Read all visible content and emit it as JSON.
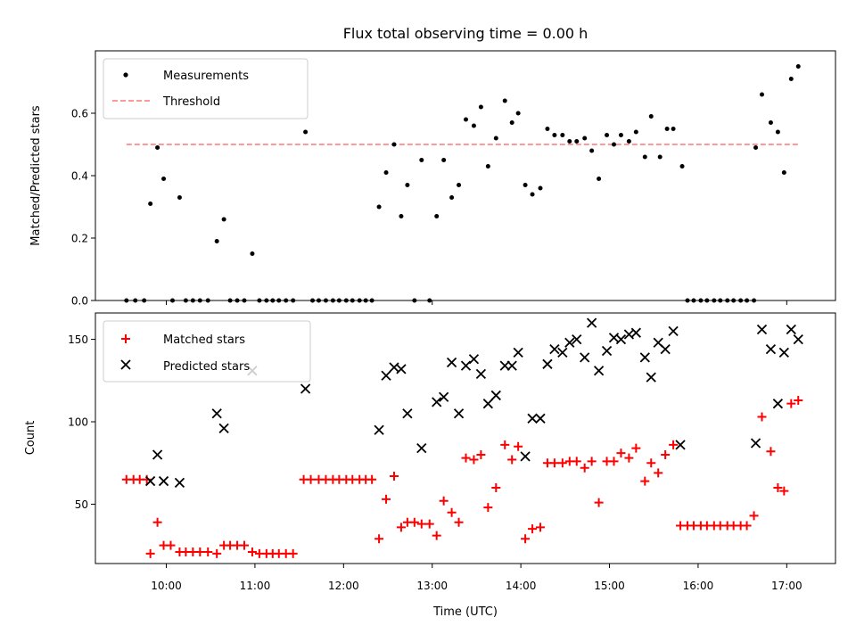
{
  "figure_title": "Flux total observing time = 0.00 h",
  "chart_data": [
    {
      "type": "scatter",
      "ylabel": "Matched/Predicted stars",
      "xlabel": "",
      "xlim": [
        9.2,
        17.55
      ],
      "ylim": [
        0,
        0.8
      ],
      "yticks": [
        0.0,
        0.2,
        0.4,
        0.6
      ],
      "ytick_labels": [
        "0.0",
        "0.2",
        "0.4",
        "0.6"
      ],
      "xticks": [
        10,
        13,
        17
      ],
      "grid": false,
      "legend_position": "upper-left",
      "threshold": {
        "name": "Threshold",
        "value": 0.5,
        "x_range": [
          9.55,
          17.15
        ],
        "color": "#ff7777",
        "style": "dashed"
      },
      "series": [
        {
          "name": "Measurements",
          "marker": "dot",
          "color": "#000000",
          "points": [
            [
              9.55,
              0
            ],
            [
              9.65,
              0
            ],
            [
              9.75,
              0
            ],
            [
              9.82,
              0.31
            ],
            [
              9.9,
              0.49
            ],
            [
              9.97,
              0.39
            ],
            [
              10.07,
              0
            ],
            [
              10.15,
              0.33
            ],
            [
              10.22,
              0
            ],
            [
              10.3,
              0
            ],
            [
              10.38,
              0
            ],
            [
              10.47,
              0
            ],
            [
              10.57,
              0.19
            ],
            [
              10.65,
              0.26
            ],
            [
              10.72,
              0
            ],
            [
              10.8,
              0
            ],
            [
              10.88,
              0
            ],
            [
              10.97,
              0.15
            ],
            [
              11.05,
              0
            ],
            [
              11.13,
              0
            ],
            [
              11.2,
              0
            ],
            [
              11.27,
              0
            ],
            [
              11.35,
              0
            ],
            [
              11.43,
              0
            ],
            [
              11.57,
              0.54
            ],
            [
              11.65,
              0
            ],
            [
              11.72,
              0
            ],
            [
              11.8,
              0
            ],
            [
              11.88,
              0
            ],
            [
              11.95,
              0
            ],
            [
              12.03,
              0
            ],
            [
              12.1,
              0
            ],
            [
              12.18,
              0
            ],
            [
              12.25,
              0
            ],
            [
              12.32,
              0
            ],
            [
              12.4,
              0.3
            ],
            [
              12.48,
              0.41
            ],
            [
              12.57,
              0.5
            ],
            [
              12.65,
              0.27
            ],
            [
              12.72,
              0.37
            ],
            [
              12.8,
              0
            ],
            [
              12.88,
              0.45
            ],
            [
              12.97,
              0
            ],
            [
              13.05,
              0.27
            ],
            [
              13.13,
              0.45
            ],
            [
              13.22,
              0.33
            ],
            [
              13.3,
              0.37
            ],
            [
              13.38,
              0.58
            ],
            [
              13.47,
              0.56
            ],
            [
              13.55,
              0.62
            ],
            [
              13.63,
              0.43
            ],
            [
              13.72,
              0.52
            ],
            [
              13.82,
              0.64
            ],
            [
              13.9,
              0.57
            ],
            [
              13.97,
              0.6
            ],
            [
              14.05,
              0.37
            ],
            [
              14.13,
              0.34
            ],
            [
              14.22,
              0.36
            ],
            [
              14.3,
              0.55
            ],
            [
              14.38,
              0.53
            ],
            [
              14.47,
              0.53
            ],
            [
              14.55,
              0.51
            ],
            [
              14.63,
              0.51
            ],
            [
              14.72,
              0.52
            ],
            [
              14.8,
              0.48
            ],
            [
              14.88,
              0.39
            ],
            [
              14.97,
              0.53
            ],
            [
              15.05,
              0.5
            ],
            [
              15.13,
              0.53
            ],
            [
              15.22,
              0.51
            ],
            [
              15.3,
              0.54
            ],
            [
              15.4,
              0.46
            ],
            [
              15.47,
              0.59
            ],
            [
              15.57,
              0.46
            ],
            [
              15.65,
              0.55
            ],
            [
              15.72,
              0.55
            ],
            [
              15.82,
              0.43
            ],
            [
              15.88,
              0
            ],
            [
              15.95,
              0
            ],
            [
              16.03,
              0
            ],
            [
              16.1,
              0
            ],
            [
              16.18,
              0
            ],
            [
              16.25,
              0
            ],
            [
              16.33,
              0
            ],
            [
              16.4,
              0
            ],
            [
              16.48,
              0
            ],
            [
              16.55,
              0
            ],
            [
              16.63,
              0
            ],
            [
              16.65,
              0.49
            ],
            [
              16.72,
              0.66
            ],
            [
              16.82,
              0.57
            ],
            [
              16.9,
              0.54
            ],
            [
              16.97,
              0.41
            ],
            [
              17.05,
              0.71
            ],
            [
              17.13,
              0.75
            ]
          ]
        }
      ]
    },
    {
      "type": "scatter",
      "ylabel": "Count",
      "xlabel": "Time (UTC)",
      "xlim": [
        9.2,
        17.55
      ],
      "ylim": [
        14,
        166
      ],
      "yticks": [
        50,
        100,
        150
      ],
      "ytick_labels": [
        "50",
        "100",
        "150"
      ],
      "xticks": [
        10,
        11,
        12,
        13,
        14,
        15,
        16,
        17
      ],
      "xtick_labels": [
        "10:00",
        "11:00",
        "12:00",
        "13:00",
        "14:00",
        "15:00",
        "16:00",
        "17:00"
      ],
      "grid": false,
      "legend_position": "upper-left",
      "series": [
        {
          "name": "Matched stars",
          "marker": "plus",
          "color": "#ff0000",
          "points": [
            [
              9.55,
              65
            ],
            [
              9.63,
              65
            ],
            [
              9.7,
              65
            ],
            [
              9.78,
              65
            ],
            [
              9.82,
              20
            ],
            [
              9.9,
              39
            ],
            [
              9.97,
              25
            ],
            [
              10.05,
              25
            ],
            [
              10.15,
              21
            ],
            [
              10.22,
              21
            ],
            [
              10.3,
              21
            ],
            [
              10.38,
              21
            ],
            [
              10.47,
              21
            ],
            [
              10.57,
              20
            ],
            [
              10.65,
              25
            ],
            [
              10.72,
              25
            ],
            [
              10.8,
              25
            ],
            [
              10.88,
              25
            ],
            [
              10.97,
              21
            ],
            [
              11.05,
              20
            ],
            [
              11.13,
              20
            ],
            [
              11.2,
              20
            ],
            [
              11.27,
              20
            ],
            [
              11.35,
              20
            ],
            [
              11.43,
              20
            ],
            [
              11.55,
              65
            ],
            [
              11.63,
              65
            ],
            [
              11.72,
              65
            ],
            [
              11.8,
              65
            ],
            [
              11.88,
              65
            ],
            [
              11.95,
              65
            ],
            [
              12.03,
              65
            ],
            [
              12.1,
              65
            ],
            [
              12.18,
              65
            ],
            [
              12.25,
              65
            ],
            [
              12.32,
              65
            ],
            [
              12.4,
              29
            ],
            [
              12.48,
              53
            ],
            [
              12.57,
              67
            ],
            [
              12.65,
              36
            ],
            [
              12.72,
              39
            ],
            [
              12.8,
              39
            ],
            [
              12.88,
              38
            ],
            [
              12.97,
              38
            ],
            [
              13.05,
              31
            ],
            [
              13.13,
              52
            ],
            [
              13.22,
              45
            ],
            [
              13.3,
              39
            ],
            [
              13.38,
              78
            ],
            [
              13.47,
              77
            ],
            [
              13.55,
              80
            ],
            [
              13.63,
              48
            ],
            [
              13.72,
              60
            ],
            [
              13.82,
              86
            ],
            [
              13.9,
              77
            ],
            [
              13.97,
              85
            ],
            [
              14.05,
              29
            ],
            [
              14.13,
              35
            ],
            [
              14.22,
              36
            ],
            [
              14.3,
              75
            ],
            [
              14.38,
              75
            ],
            [
              14.47,
              75
            ],
            [
              14.55,
              76
            ],
            [
              14.63,
              76
            ],
            [
              14.72,
              72
            ],
            [
              14.8,
              76
            ],
            [
              14.88,
              51
            ],
            [
              14.97,
              76
            ],
            [
              15.05,
              76
            ],
            [
              15.13,
              81
            ],
            [
              15.22,
              78
            ],
            [
              15.3,
              84
            ],
            [
              15.4,
              64
            ],
            [
              15.47,
              75
            ],
            [
              15.55,
              69
            ],
            [
              15.63,
              80
            ],
            [
              15.72,
              86
            ],
            [
              15.8,
              37
            ],
            [
              15.88,
              37
            ],
            [
              15.95,
              37
            ],
            [
              16.03,
              37
            ],
            [
              16.1,
              37
            ],
            [
              16.18,
              37
            ],
            [
              16.25,
              37
            ],
            [
              16.33,
              37
            ],
            [
              16.4,
              37
            ],
            [
              16.48,
              37
            ],
            [
              16.55,
              37
            ],
            [
              16.63,
              43
            ],
            [
              16.72,
              103
            ],
            [
              16.82,
              82
            ],
            [
              16.9,
              60
            ],
            [
              16.97,
              58
            ],
            [
              17.05,
              111
            ],
            [
              17.13,
              113
            ]
          ]
        },
        {
          "name": "Predicted stars",
          "marker": "x",
          "color": "#000000",
          "points": [
            [
              9.82,
              64
            ],
            [
              9.9,
              80
            ],
            [
              9.97,
              64
            ],
            [
              10.15,
              63
            ],
            [
              10.57,
              105
            ],
            [
              10.65,
              96
            ],
            [
              10.97,
              131
            ],
            [
              11.57,
              120
            ],
            [
              12.4,
              95
            ],
            [
              12.48,
              128
            ],
            [
              12.57,
              133
            ],
            [
              12.65,
              132
            ],
            [
              12.72,
              105
            ],
            [
              12.88,
              84
            ],
            [
              13.05,
              112
            ],
            [
              13.13,
              115
            ],
            [
              13.22,
              136
            ],
            [
              13.3,
              105
            ],
            [
              13.38,
              134
            ],
            [
              13.47,
              138
            ],
            [
              13.55,
              129
            ],
            [
              13.63,
              111
            ],
            [
              13.72,
              116
            ],
            [
              13.82,
              134
            ],
            [
              13.9,
              134
            ],
            [
              13.97,
              142
            ],
            [
              14.05,
              79
            ],
            [
              14.13,
              102
            ],
            [
              14.22,
              102
            ],
            [
              14.3,
              135
            ],
            [
              14.38,
              144
            ],
            [
              14.47,
              142
            ],
            [
              14.55,
              148
            ],
            [
              14.63,
              150
            ],
            [
              14.72,
              139
            ],
            [
              14.8,
              160
            ],
            [
              14.88,
              131
            ],
            [
              14.97,
              143
            ],
            [
              15.05,
              151
            ],
            [
              15.13,
              150
            ],
            [
              15.22,
              153
            ],
            [
              15.3,
              154
            ],
            [
              15.4,
              139
            ],
            [
              15.47,
              127
            ],
            [
              15.55,
              148
            ],
            [
              15.63,
              144
            ],
            [
              15.72,
              155
            ],
            [
              15.8,
              86
            ],
            [
              16.65,
              87
            ],
            [
              16.72,
              156
            ],
            [
              16.82,
              144
            ],
            [
              16.9,
              111
            ],
            [
              16.97,
              142
            ],
            [
              17.05,
              156
            ],
            [
              17.13,
              150
            ]
          ]
        }
      ]
    }
  ]
}
